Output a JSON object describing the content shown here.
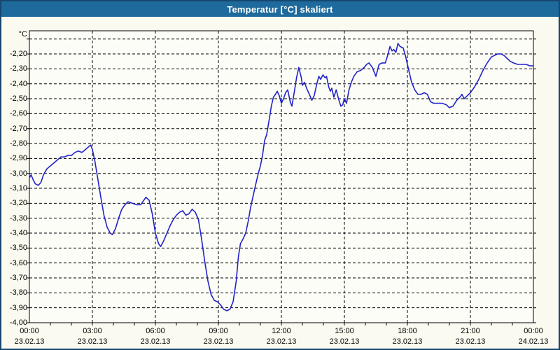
{
  "window": {
    "title": "Temperatur [°C] skaliert"
  },
  "colors": {
    "titlebar": "#1E6A9D",
    "title_text": "#FFFFFF",
    "window_border": "#16476E",
    "background": "#FAFAF0",
    "plot_background": "#FDFDF8",
    "grid": "#000000",
    "line": "#2222C8",
    "label": "#000000"
  },
  "chart_data": {
    "type": "line",
    "title": "Temperatur [°C] skaliert",
    "xlabel": "",
    "ylabel": "°C",
    "grid": true,
    "legend": "none",
    "x_range_hours": [
      0,
      24
    ],
    "y_axis_top": -2.045,
    "y_axis_bottom": -4.0,
    "y_ticks": [
      {
        "value": -2.1,
        "label": ""
      },
      {
        "value": -2.2,
        "label": "-2,20"
      },
      {
        "value": -2.3,
        "label": "-2,30"
      },
      {
        "value": -2.4,
        "label": "-2,40"
      },
      {
        "value": -2.5,
        "label": "-2,50"
      },
      {
        "value": -2.6,
        "label": "-2,60"
      },
      {
        "value": -2.7,
        "label": "-2,70"
      },
      {
        "value": -2.8,
        "label": "-2,80"
      },
      {
        "value": -2.9,
        "label": "-2,90"
      },
      {
        "value": -3.0,
        "label": "-3,00"
      },
      {
        "value": -3.1,
        "label": "-3,10"
      },
      {
        "value": -3.2,
        "label": "-3,20"
      },
      {
        "value": -3.3,
        "label": "-3,30"
      },
      {
        "value": -3.4,
        "label": "-3,40"
      },
      {
        "value": -3.5,
        "label": "-3,50"
      },
      {
        "value": -3.6,
        "label": "-3,60"
      },
      {
        "value": -3.7,
        "label": "-3,70"
      },
      {
        "value": -3.8,
        "label": "-3,80"
      },
      {
        "value": -3.9,
        "label": "-3,90"
      },
      {
        "value": -4.0,
        "label": "-4,00"
      }
    ],
    "x_ticks": [
      {
        "hour": 0,
        "time": "00:00",
        "date": "23.02.13"
      },
      {
        "hour": 3,
        "time": "03:00",
        "date": "23.02.13"
      },
      {
        "hour": 6,
        "time": "06:00",
        "date": "23.02.13"
      },
      {
        "hour": 9,
        "time": "09:00",
        "date": "23.02.13"
      },
      {
        "hour": 12,
        "time": "12:00",
        "date": "23.02.13"
      },
      {
        "hour": 15,
        "time": "15:00",
        "date": "23.02.13"
      },
      {
        "hour": 18,
        "time": "18:00",
        "date": "23.02.13"
      },
      {
        "hour": 21,
        "time": "21:00",
        "date": "23.02.13"
      },
      {
        "hour": 24,
        "time": "00:00",
        "date": "24.02.13"
      }
    ],
    "minor_tick_every_hours": 1,
    "series": [
      {
        "name": "Temperatur",
        "points": [
          [
            0,
            -3.03
          ],
          [
            0.08,
            -3.01
          ],
          [
            0.17,
            -3.04
          ],
          [
            0.28,
            -3.07
          ],
          [
            0.42,
            -3.08
          ],
          [
            0.55,
            -3.06
          ],
          [
            0.67,
            -3.01
          ],
          [
            0.83,
            -2.97
          ],
          [
            1.0,
            -2.95
          ],
          [
            1.17,
            -2.93
          ],
          [
            1.33,
            -2.91
          ],
          [
            1.5,
            -2.89
          ],
          [
            1.67,
            -2.89
          ],
          [
            1.83,
            -2.88
          ],
          [
            2.0,
            -2.88
          ],
          [
            2.17,
            -2.86
          ],
          [
            2.33,
            -2.85
          ],
          [
            2.5,
            -2.86
          ],
          [
            2.67,
            -2.84
          ],
          [
            2.83,
            -2.82
          ],
          [
            2.92,
            -2.81
          ],
          [
            3.0,
            -2.84
          ],
          [
            3.12,
            -2.92
          ],
          [
            3.25,
            -3.03
          ],
          [
            3.4,
            -3.16
          ],
          [
            3.55,
            -3.28
          ],
          [
            3.7,
            -3.36
          ],
          [
            3.85,
            -3.4
          ],
          [
            3.95,
            -3.41
          ],
          [
            4.1,
            -3.37
          ],
          [
            4.25,
            -3.3
          ],
          [
            4.4,
            -3.24
          ],
          [
            4.55,
            -3.21
          ],
          [
            4.7,
            -3.19
          ],
          [
            4.9,
            -3.2
          ],
          [
            5.1,
            -3.21
          ],
          [
            5.3,
            -3.21
          ],
          [
            5.45,
            -3.18
          ],
          [
            5.55,
            -3.16
          ],
          [
            5.7,
            -3.18
          ],
          [
            5.85,
            -3.27
          ],
          [
            6.0,
            -3.4
          ],
          [
            6.15,
            -3.47
          ],
          [
            6.25,
            -3.49
          ],
          [
            6.4,
            -3.45
          ],
          [
            6.55,
            -3.4
          ],
          [
            6.7,
            -3.35
          ],
          [
            6.85,
            -3.31
          ],
          [
            7.0,
            -3.28
          ],
          [
            7.15,
            -3.26
          ],
          [
            7.3,
            -3.25
          ],
          [
            7.45,
            -3.28
          ],
          [
            7.6,
            -3.27
          ],
          [
            7.75,
            -3.24
          ],
          [
            7.9,
            -3.26
          ],
          [
            8.05,
            -3.31
          ],
          [
            8.2,
            -3.44
          ],
          [
            8.35,
            -3.59
          ],
          [
            8.5,
            -3.72
          ],
          [
            8.65,
            -3.81
          ],
          [
            8.8,
            -3.85
          ],
          [
            8.95,
            -3.86
          ],
          [
            9.1,
            -3.88
          ],
          [
            9.25,
            -3.91
          ],
          [
            9.4,
            -3.92
          ],
          [
            9.55,
            -3.91
          ],
          [
            9.7,
            -3.86
          ],
          [
            9.85,
            -3.72
          ],
          [
            9.95,
            -3.56
          ],
          [
            10.05,
            -3.47
          ],
          [
            10.17,
            -3.44
          ],
          [
            10.3,
            -3.4
          ],
          [
            10.42,
            -3.32
          ],
          [
            10.53,
            -3.23
          ],
          [
            10.64,
            -3.16
          ],
          [
            10.75,
            -3.09
          ],
          [
            10.9,
            -3.0
          ],
          [
            11.0,
            -2.95
          ],
          [
            11.1,
            -2.88
          ],
          [
            11.2,
            -2.78
          ],
          [
            11.3,
            -2.74
          ],
          [
            11.42,
            -2.64
          ],
          [
            11.52,
            -2.55
          ],
          [
            11.62,
            -2.49
          ],
          [
            11.72,
            -2.47
          ],
          [
            11.8,
            -2.45
          ],
          [
            11.9,
            -2.48
          ],
          [
            12.0,
            -2.53
          ],
          [
            12.1,
            -2.5
          ],
          [
            12.2,
            -2.46
          ],
          [
            12.3,
            -2.44
          ],
          [
            12.42,
            -2.52
          ],
          [
            12.5,
            -2.55
          ],
          [
            12.62,
            -2.45
          ],
          [
            12.72,
            -2.36
          ],
          [
            12.83,
            -2.29
          ],
          [
            12.95,
            -2.36
          ],
          [
            13.0,
            -2.41
          ],
          [
            13.1,
            -2.39
          ],
          [
            13.2,
            -2.43
          ],
          [
            13.33,
            -2.47
          ],
          [
            13.45,
            -2.51
          ],
          [
            13.56,
            -2.48
          ],
          [
            13.67,
            -2.41
          ],
          [
            13.78,
            -2.35
          ],
          [
            13.87,
            -2.37
          ],
          [
            13.98,
            -2.34
          ],
          [
            14.08,
            -2.36
          ],
          [
            14.15,
            -2.35
          ],
          [
            14.25,
            -2.42
          ],
          [
            14.33,
            -2.45
          ],
          [
            14.4,
            -2.43
          ],
          [
            14.5,
            -2.49
          ],
          [
            14.61,
            -2.44
          ],
          [
            14.72,
            -2.5
          ],
          [
            14.83,
            -2.55
          ],
          [
            14.92,
            -2.54
          ],
          [
            15.0,
            -2.5
          ],
          [
            15.1,
            -2.53
          ],
          [
            15.22,
            -2.44
          ],
          [
            15.33,
            -2.39
          ],
          [
            15.45,
            -2.35
          ],
          [
            15.6,
            -2.32
          ],
          [
            15.78,
            -2.31
          ],
          [
            15.94,
            -2.29
          ],
          [
            16.06,
            -2.27
          ],
          [
            16.17,
            -2.26
          ],
          [
            16.33,
            -2.29
          ],
          [
            16.5,
            -2.35
          ],
          [
            16.65,
            -2.27
          ],
          [
            16.8,
            -2.26
          ],
          [
            16.95,
            -2.26
          ],
          [
            17.06,
            -2.21
          ],
          [
            17.17,
            -2.15
          ],
          [
            17.27,
            -2.18
          ],
          [
            17.35,
            -2.17
          ],
          [
            17.45,
            -2.19
          ],
          [
            17.55,
            -2.13
          ],
          [
            17.65,
            -2.15
          ],
          [
            17.8,
            -2.16
          ],
          [
            17.92,
            -2.22
          ],
          [
            18.05,
            -2.3
          ],
          [
            18.2,
            -2.39
          ],
          [
            18.35,
            -2.44
          ],
          [
            18.5,
            -2.47
          ],
          [
            18.65,
            -2.47
          ],
          [
            18.8,
            -2.46
          ],
          [
            18.95,
            -2.47
          ],
          [
            19.1,
            -2.52
          ],
          [
            19.25,
            -2.53
          ],
          [
            19.45,
            -2.53
          ],
          [
            19.65,
            -2.53
          ],
          [
            19.85,
            -2.54
          ],
          [
            20.0,
            -2.56
          ],
          [
            20.17,
            -2.55
          ],
          [
            20.35,
            -2.51
          ],
          [
            20.5,
            -2.49
          ],
          [
            20.6,
            -2.47
          ],
          [
            20.7,
            -2.5
          ],
          [
            20.85,
            -2.48
          ],
          [
            21.0,
            -2.46
          ],
          [
            21.2,
            -2.42
          ],
          [
            21.4,
            -2.37
          ],
          [
            21.6,
            -2.31
          ],
          [
            21.8,
            -2.26
          ],
          [
            22.0,
            -2.22
          ],
          [
            22.15,
            -2.21
          ],
          [
            22.3,
            -2.2
          ],
          [
            22.45,
            -2.2
          ],
          [
            22.6,
            -2.21
          ],
          [
            22.75,
            -2.23
          ],
          [
            22.9,
            -2.25
          ],
          [
            23.05,
            -2.26
          ],
          [
            23.25,
            -2.27
          ],
          [
            23.45,
            -2.27
          ],
          [
            23.65,
            -2.27
          ],
          [
            23.85,
            -2.28
          ],
          [
            24.0,
            -2.28
          ]
        ]
      }
    ]
  }
}
